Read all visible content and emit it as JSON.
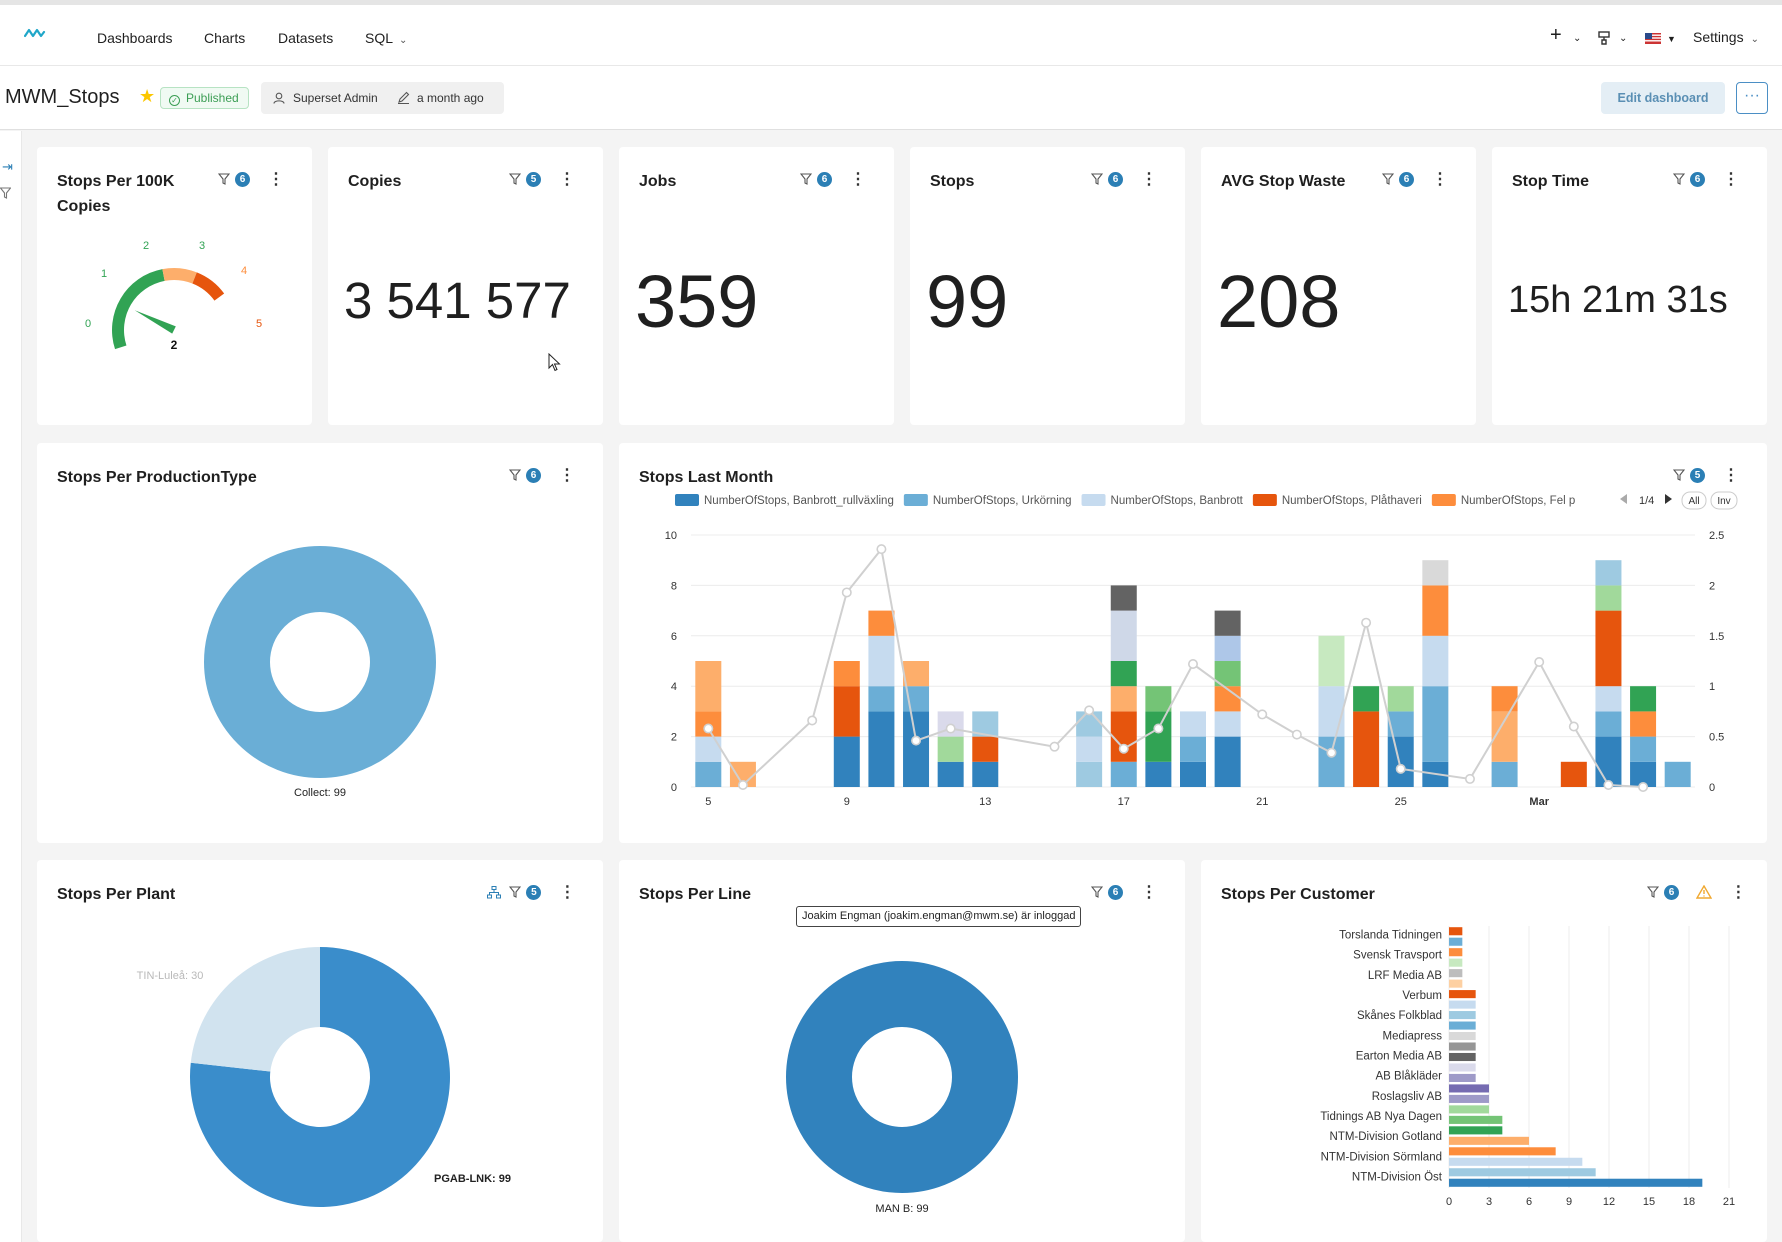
{
  "nav": {
    "items": [
      {
        "label": "Dashboards"
      },
      {
        "label": "Charts"
      },
      {
        "label": "Datasets"
      },
      {
        "label": "SQL"
      }
    ],
    "settings_label": "Settings"
  },
  "header": {
    "title": "MWM_Stops",
    "status": "Published",
    "owner": "Superset Admin",
    "modified": "a month ago",
    "edit_label": "Edit dashboard",
    "more_label": "···"
  },
  "cards": {
    "stops_per_100k": {
      "title_line1": "Stops Per 100K",
      "title_line2": "Copies",
      "filter_count": "6",
      "value": "2",
      "gauge_ticks": [
        "0",
        "1",
        "2",
        "3",
        "4",
        "5"
      ],
      "gauge_value": 2,
      "gauge_max": 5
    },
    "copies": {
      "title": "Copies",
      "filter_count": "5",
      "value": "3 541 577"
    },
    "jobs": {
      "title": "Jobs",
      "filter_count": "6",
      "value": "359"
    },
    "stops": {
      "title": "Stops",
      "filter_count": "6",
      "value": "99"
    },
    "avg_stop_waste": {
      "title": "AVG Stop Waste",
      "filter_count": "6",
      "value": "208"
    },
    "stop_time": {
      "title": "Stop Time",
      "filter_count": "6",
      "value": "15h 21m 31s"
    },
    "stops_per_production_type": {
      "title": "Stops Per ProductionType",
      "filter_count": "6"
    },
    "stops_last_month": {
      "title": "Stops Last Month",
      "filter_count": "5",
      "legend_page": "1/4",
      "legend_all": "All",
      "legend_inv": "Inv"
    },
    "stops_per_plant": {
      "title": "Stops Per Plant",
      "filter_count": "5"
    },
    "stops_per_line": {
      "title": "Stops Per Line",
      "filter_count": "6"
    },
    "stops_per_customer": {
      "title": "Stops Per Customer",
      "filter_count": "6"
    }
  },
  "tooltip": "Joakim Engman (joakim.engman@mwm.se) är inloggad",
  "colors": {
    "brand": "#20a7c9",
    "badge": "#2b7fb5",
    "published": "#3c9e55"
  },
  "chart_data": [
    {
      "id": "production_type",
      "type": "pie",
      "labels": [
        "Collect"
      ],
      "values": [
        99
      ],
      "donut": true,
      "colors": [
        "#6aaed6"
      ],
      "data_labels": [
        "Collect: 99"
      ]
    },
    {
      "id": "stops_last_month",
      "type": "bar",
      "stacked": true,
      "x_ticks": [
        "5",
        "9",
        "13",
        "17",
        "21",
        "25",
        "Mar"
      ],
      "x": [
        5,
        6,
        9,
        10,
        11,
        12,
        13,
        16,
        17,
        18,
        19,
        20,
        21,
        23,
        24,
        25,
        26,
        28,
        30,
        31,
        32,
        33
      ],
      "ylim": [
        0,
        10
      ],
      "y_ticks": [
        "0",
        "2",
        "4",
        "6",
        "8",
        "10"
      ],
      "y2lim": [
        0,
        2.5
      ],
      "y2_ticks": [
        "0",
        "0.5",
        "1",
        "1.5",
        "2",
        "2.5"
      ],
      "legend": [
        {
          "name": "NumberOfStops, Banbrott_rullväxling",
          "color": "#3182bd"
        },
        {
          "name": "NumberOfStops, Urkörning",
          "color": "#6baed6"
        },
        {
          "name": "NumberOfStops, Banbrott",
          "color": "#c6dbef"
        },
        {
          "name": "NumberOfStops, Plåthaveri",
          "color": "#e6550d"
        },
        {
          "name": "NumberOfStops, Fel p",
          "color": "#fd8d3c"
        }
      ],
      "stacks": [
        [
          [
            1,
            "#6baed6"
          ],
          [
            1,
            "#c6dbef"
          ],
          [
            1,
            "#fd8d3c"
          ],
          [
            2,
            "#fdae6b"
          ]
        ],
        [
          [
            1,
            "#fdae6b"
          ]
        ],
        [
          [
            2,
            "#3182bd"
          ],
          [
            2,
            "#e6550d"
          ],
          [
            1,
            "#fd8d3c"
          ]
        ],
        [
          [
            3,
            "#3182bd"
          ],
          [
            1,
            "#6baed6"
          ],
          [
            2,
            "#c6dbef"
          ],
          [
            1,
            "#fd8d3c"
          ]
        ],
        [
          [
            3,
            "#3182bd"
          ],
          [
            1,
            "#6baed6"
          ],
          [
            1,
            "#fdae6b"
          ]
        ],
        [
          [
            1,
            "#3182bd"
          ],
          [
            1,
            "#a1d99b"
          ],
          [
            1,
            "#dadaeb"
          ]
        ],
        [
          [
            1,
            "#3182bd"
          ],
          [
            1,
            "#e6550d"
          ],
          [
            1,
            "#9ecae1"
          ]
        ],
        [
          [
            1,
            "#9ecae1"
          ],
          [
            1,
            "#c6dbef"
          ],
          [
            1,
            "#9ecae1"
          ]
        ],
        [
          [
            1,
            "#6baed6"
          ],
          [
            2,
            "#e6550d"
          ],
          [
            1,
            "#fdae6b"
          ],
          [
            1,
            "#31a354"
          ],
          [
            2,
            "#cfd8e8"
          ],
          [
            1,
            "#636363"
          ]
        ],
        [
          [
            1,
            "#3182bd"
          ],
          [
            2,
            "#31a354"
          ],
          [
            1,
            "#74c476"
          ]
        ],
        [
          [
            1,
            "#3182bd"
          ],
          [
            1,
            "#6baed6"
          ],
          [
            1,
            "#c6dbef"
          ]
        ],
        [
          [
            2,
            "#3182bd"
          ],
          [
            1,
            "#c6dbef"
          ],
          [
            1,
            "#fd8d3c"
          ],
          [
            1,
            "#74c476"
          ],
          [
            1,
            "#aec7e8"
          ],
          [
            1,
            "#636363"
          ]
        ],
        [],
        [
          [
            2,
            "#6baed6"
          ],
          [
            2,
            "#c6dbef"
          ],
          [
            2,
            "#c7e9c0"
          ]
        ],
        [
          [
            3,
            "#e6550d"
          ],
          [
            1,
            "#31a354"
          ]
        ],
        [
          [
            2,
            "#3182bd"
          ],
          [
            1,
            "#6baed6"
          ],
          [
            1,
            "#a1d99b"
          ]
        ],
        [
          [
            1,
            "#3182bd"
          ],
          [
            3,
            "#6baed6"
          ],
          [
            2,
            "#c6dbef"
          ],
          [
            2,
            "#fd8d3c"
          ],
          [
            1,
            "#d9d9d9"
          ]
        ],
        [
          [
            1,
            "#6baed6"
          ],
          [
            2,
            "#fdae6b"
          ],
          [
            1,
            "#fd8d3c"
          ]
        ],
        [
          [
            1,
            "#e6550d"
          ]
        ],
        [
          [
            2,
            "#3182bd"
          ],
          [
            1,
            "#6baed6"
          ],
          [
            1,
            "#c6dbef"
          ],
          [
            3,
            "#e6550d"
          ],
          [
            1,
            "#a1d99b"
          ],
          [
            1,
            "#9ecae1"
          ]
        ],
        [
          [
            1,
            "#3182bd"
          ],
          [
            1,
            "#6baed6"
          ],
          [
            1,
            "#fd8d3c"
          ],
          [
            1,
            "#31a354"
          ]
        ],
        [
          [
            1,
            "#6baed6"
          ]
        ]
      ],
      "line": {
        "x": [
          5,
          6,
          8,
          9,
          10,
          11,
          12,
          15,
          16,
          17,
          18,
          19,
          21,
          22,
          23,
          24,
          25,
          27,
          29,
          30,
          31,
          32
        ],
        "y": [
          0.58,
          0.02,
          0.66,
          1.93,
          2.36,
          0.46,
          0.58,
          0.4,
          0.76,
          0.38,
          0.58,
          1.22,
          0.72,
          0.52,
          0.34,
          1.63,
          0.18,
          0.08,
          1.24,
          0.6,
          0.02,
          0.0
        ]
      }
    },
    {
      "id": "plant",
      "type": "pie",
      "labels": [
        "PGAB-LNK",
        "TIN-Luleå"
      ],
      "values": [
        99,
        30
      ],
      "donut": true,
      "colors": [
        "#3a8dcb",
        "#d1e3ef"
      ],
      "data_labels": [
        "PGAB-LNK: 99",
        "TIN-Luleå: 30"
      ]
    },
    {
      "id": "line",
      "type": "pie",
      "labels": [
        "MAN B"
      ],
      "values": [
        99
      ],
      "donut": true,
      "colors": [
        "#3182bd"
      ],
      "data_labels": [
        "MAN B: 99"
      ]
    },
    {
      "id": "customer",
      "type": "bar",
      "orientation": "horizontal",
      "xlim": [
        0,
        21
      ],
      "x_ticks": [
        "0",
        "3",
        "6",
        "9",
        "12",
        "15",
        "18",
        "21"
      ],
      "categories": [
        "Torslanda Tidningen",
        "Svensk Travsport",
        "LRF Media AB",
        "Verbum",
        "Skånes Folkblad",
        "Mediapress",
        "Earton Media AB",
        "AB Blåkläder",
        "Roslagsliv AB",
        "Tidnings AB Nya Dagen",
        "NTM-Division Gotland",
        "NTM-Division Sörmland",
        "NTM-Division Öst"
      ],
      "bars": [
        [
          1,
          "#e6550d"
        ],
        [
          1,
          "#6baed6"
        ],
        [
          1,
          "#fd8d3c"
        ],
        [
          1,
          "#c7e9c0"
        ],
        [
          1,
          "#bdbdbd"
        ],
        [
          1,
          "#fdd0a2"
        ],
        [
          2,
          "#e6550d"
        ],
        [
          2,
          "#c6dbef"
        ],
        [
          2,
          "#9ecae1"
        ],
        [
          2,
          "#6baed6"
        ],
        [
          2,
          "#d9d9d9"
        ],
        [
          2,
          "#969696"
        ],
        [
          2,
          "#636363"
        ],
        [
          2,
          "#dadaeb"
        ],
        [
          2,
          "#9e9ac8"
        ],
        [
          3,
          "#756bb1"
        ],
        [
          3,
          "#9e9ac8"
        ],
        [
          3,
          "#a1d99b"
        ],
        [
          4,
          "#74c476"
        ],
        [
          4,
          "#31a354"
        ],
        [
          6,
          "#fdae6b"
        ],
        [
          8,
          "#fd8d3c"
        ],
        [
          10,
          "#c6dbef"
        ],
        [
          11,
          "#9ecae1"
        ],
        [
          19,
          "#3182bd"
        ]
      ]
    }
  ]
}
